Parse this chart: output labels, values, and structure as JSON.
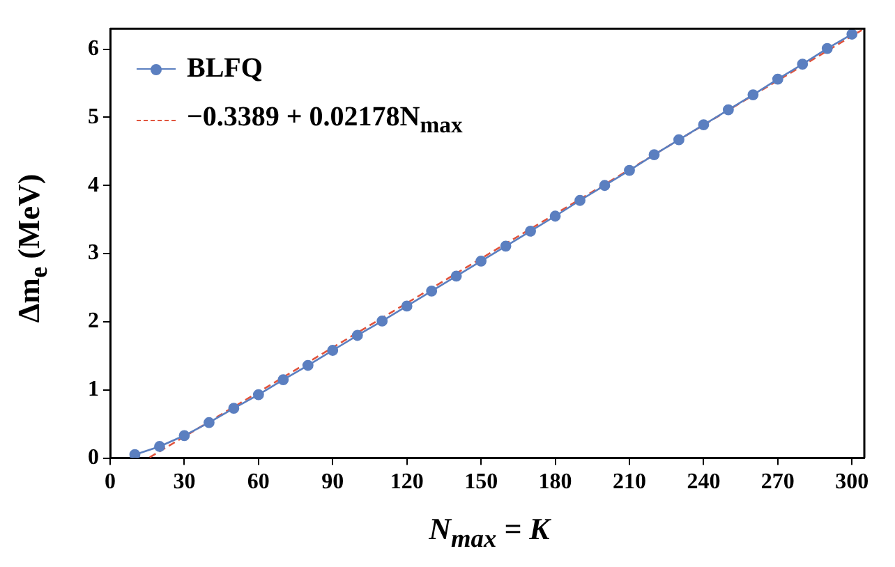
{
  "chart_data": {
    "type": "line",
    "xlabel": "N$_{max}$ = K",
    "ylabel": "Δm$_{e}$ (MeV)",
    "xlim": [
      0,
      305
    ],
    "ylim": [
      0,
      6.3
    ],
    "xticks": [
      0,
      30,
      60,
      90,
      120,
      150,
      180,
      210,
      240,
      270,
      300
    ],
    "yticks": [
      0,
      1,
      2,
      3,
      4,
      5,
      6
    ],
    "grid": false,
    "legend": "top left",
    "series": [
      {
        "name": "BLFQ",
        "color": "#5b7fc0",
        "marker": "circle",
        "line_style": "solid",
        "x": [
          10,
          20,
          30,
          40,
          50,
          60,
          70,
          80,
          90,
          100,
          110,
          120,
          130,
          140,
          150,
          160,
          170,
          180,
          190,
          200,
          210,
          220,
          230,
          240,
          250,
          260,
          270,
          280,
          290,
          300
        ],
        "values": [
          0.05,
          0.17,
          0.33,
          0.52,
          0.73,
          0.93,
          1.15,
          1.36,
          1.58,
          1.8,
          2.01,
          2.23,
          2.45,
          2.67,
          2.89,
          3.11,
          3.33,
          3.55,
          3.78,
          4.0,
          4.22,
          4.45,
          4.67,
          4.89,
          5.11,
          5.33,
          5.56,
          5.78,
          6.01,
          6.22
        ]
      },
      {
        "name": "−0.3389 + 0.02178N$_{max}$",
        "color": "#e0533c",
        "marker": "none",
        "line_style": "dashed",
        "x": [
          16,
          304
        ],
        "values": [
          0.01,
          6.28
        ]
      }
    ]
  }
}
